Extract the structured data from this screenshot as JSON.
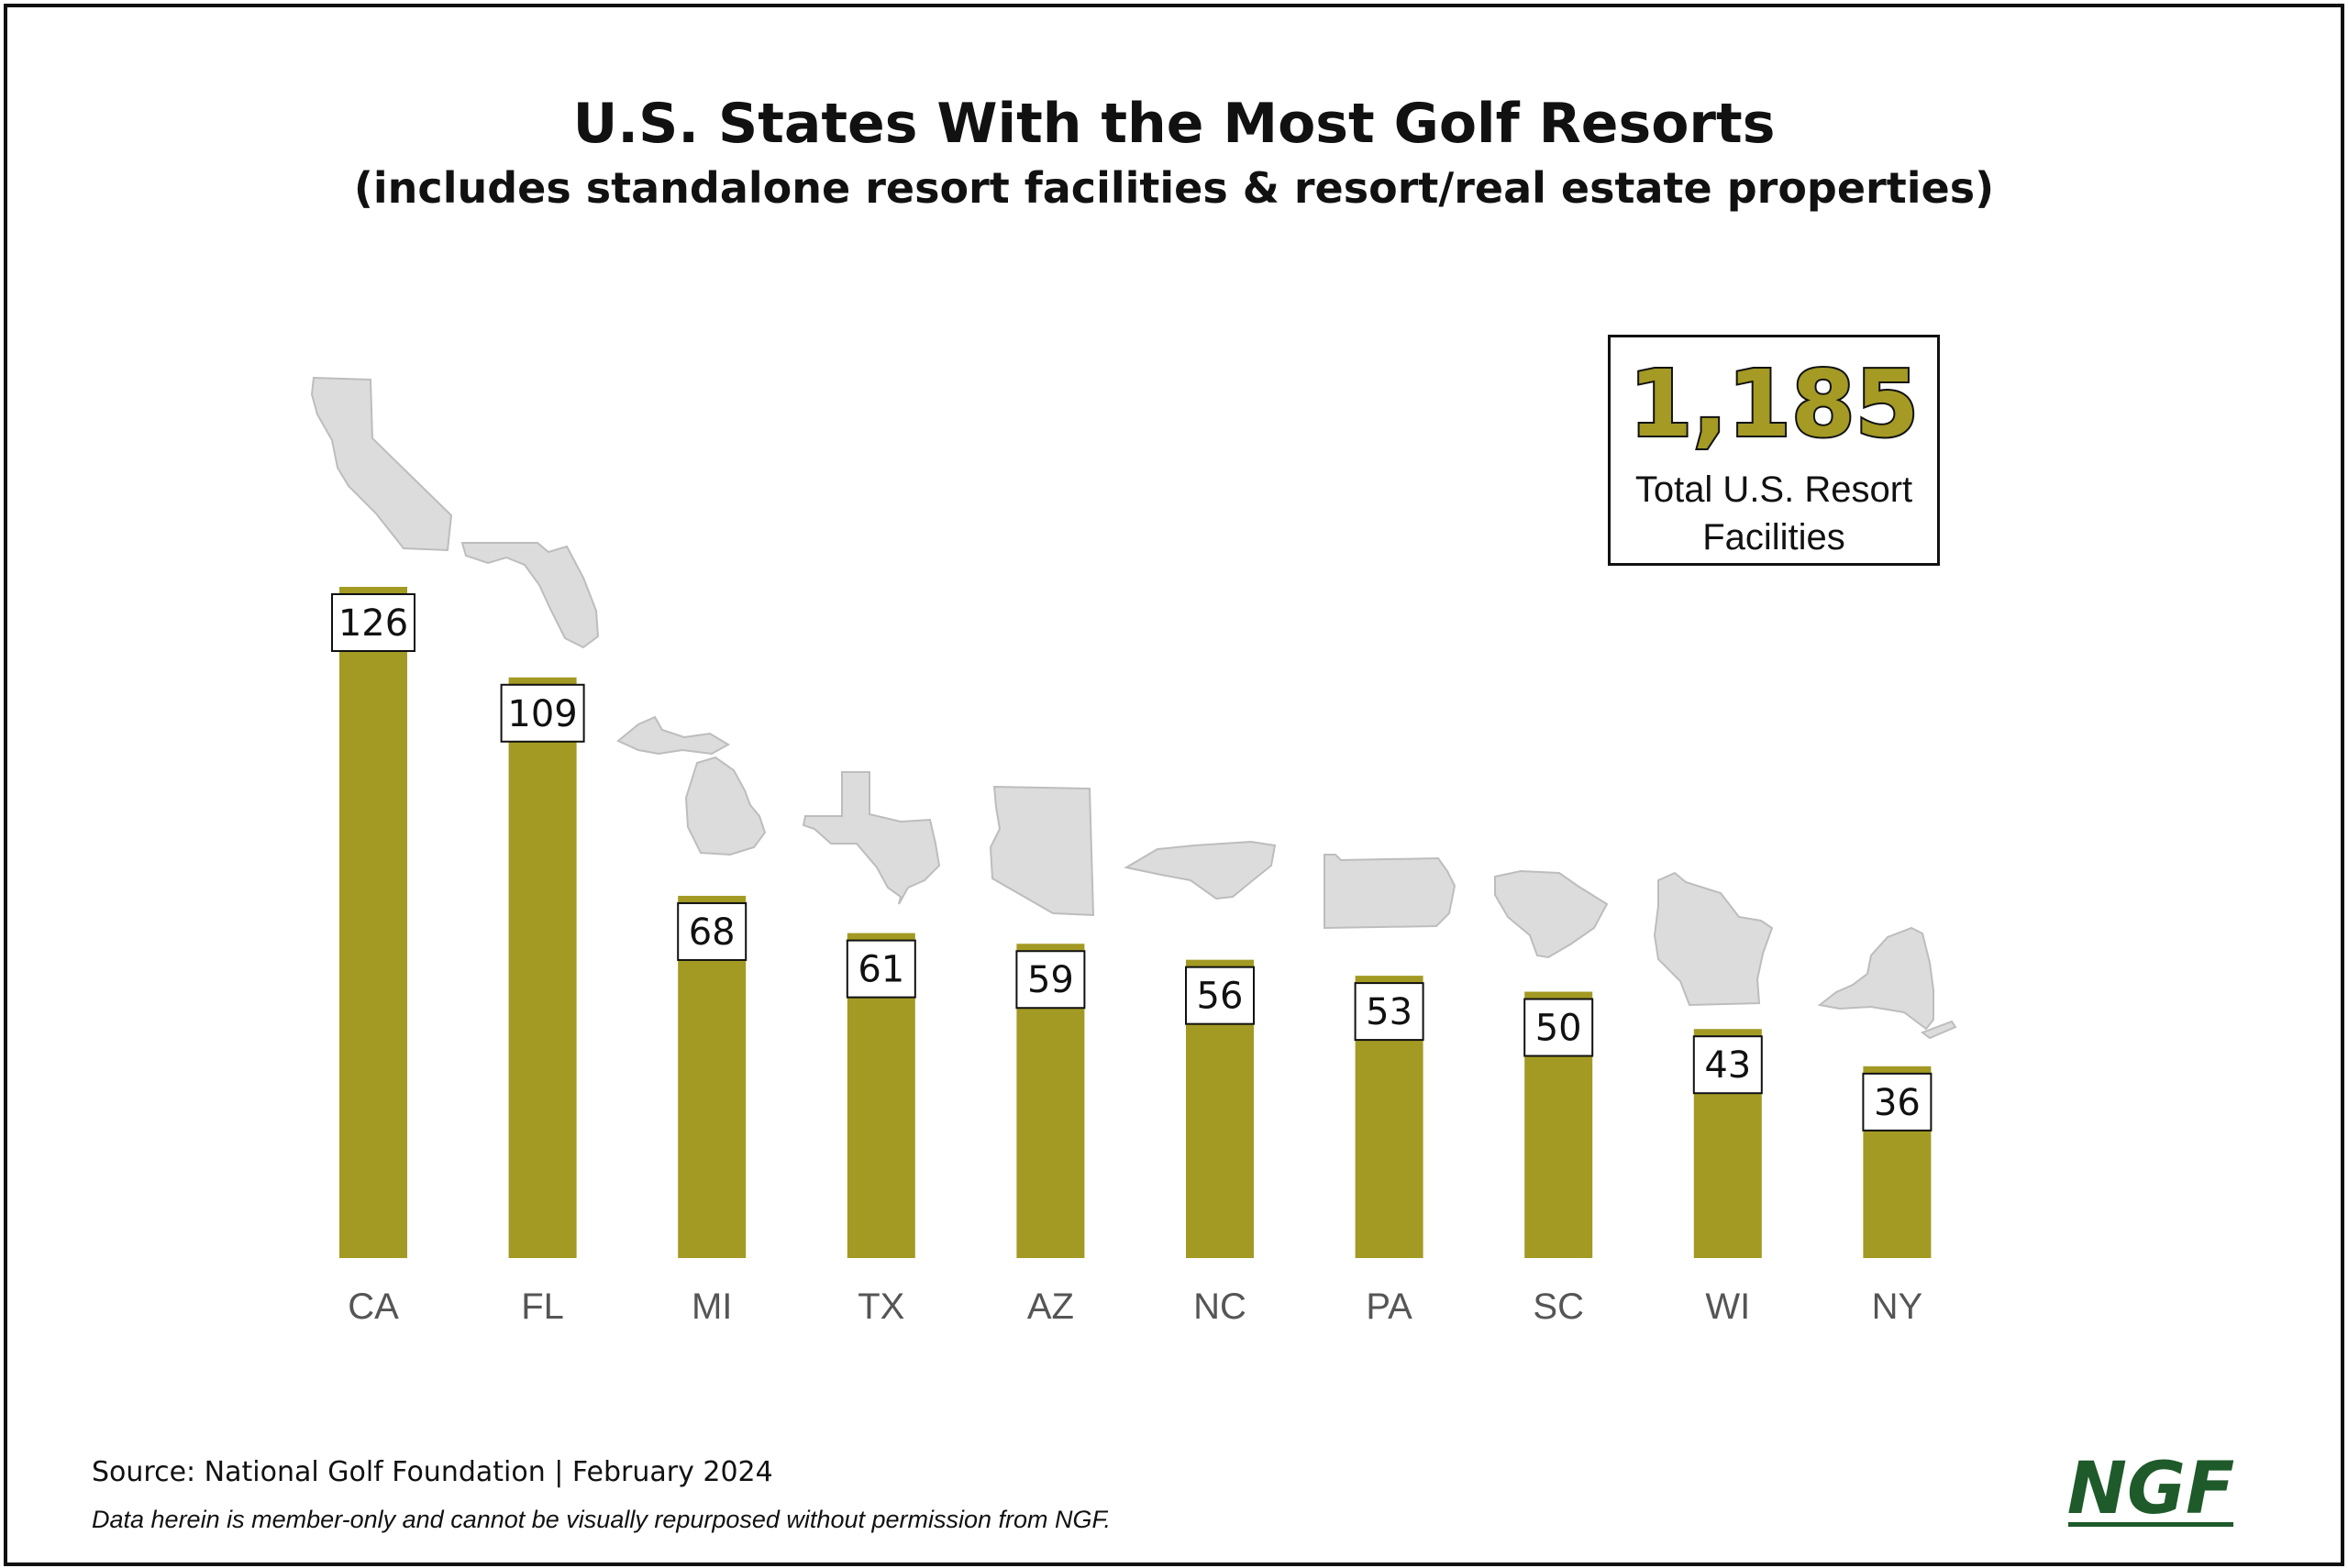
{
  "chart_data": {
    "type": "bar",
    "title": "U.S. States With the Most Golf Resorts",
    "subtitle": "(includes standalone resort facilities & resort/real estate properties)",
    "categories": [
      "CA",
      "FL",
      "MI",
      "TX",
      "AZ",
      "NC",
      "PA",
      "SC",
      "WI",
      "NY"
    ],
    "values": [
      126,
      109,
      68,
      61,
      59,
      56,
      53,
      50,
      43,
      36
    ],
    "ylim": [
      0,
      126
    ],
    "grid": false,
    "data_labels": true
  },
  "callout": {
    "number": "1,185",
    "label": "Total U.S. Resort Facilities"
  },
  "footer": {
    "source": "Source: National Golf Foundation | February 2024",
    "disclaimer": "Data herein is member-only and cannot be visually repurposed without permission from NGF."
  },
  "logo": {
    "text": "NGF"
  },
  "colors": {
    "bar": "#a39a24",
    "state_shape": "#dcdcdc",
    "logo": "#1e5a2a",
    "text": "#111111",
    "axis_label": "#555555"
  }
}
